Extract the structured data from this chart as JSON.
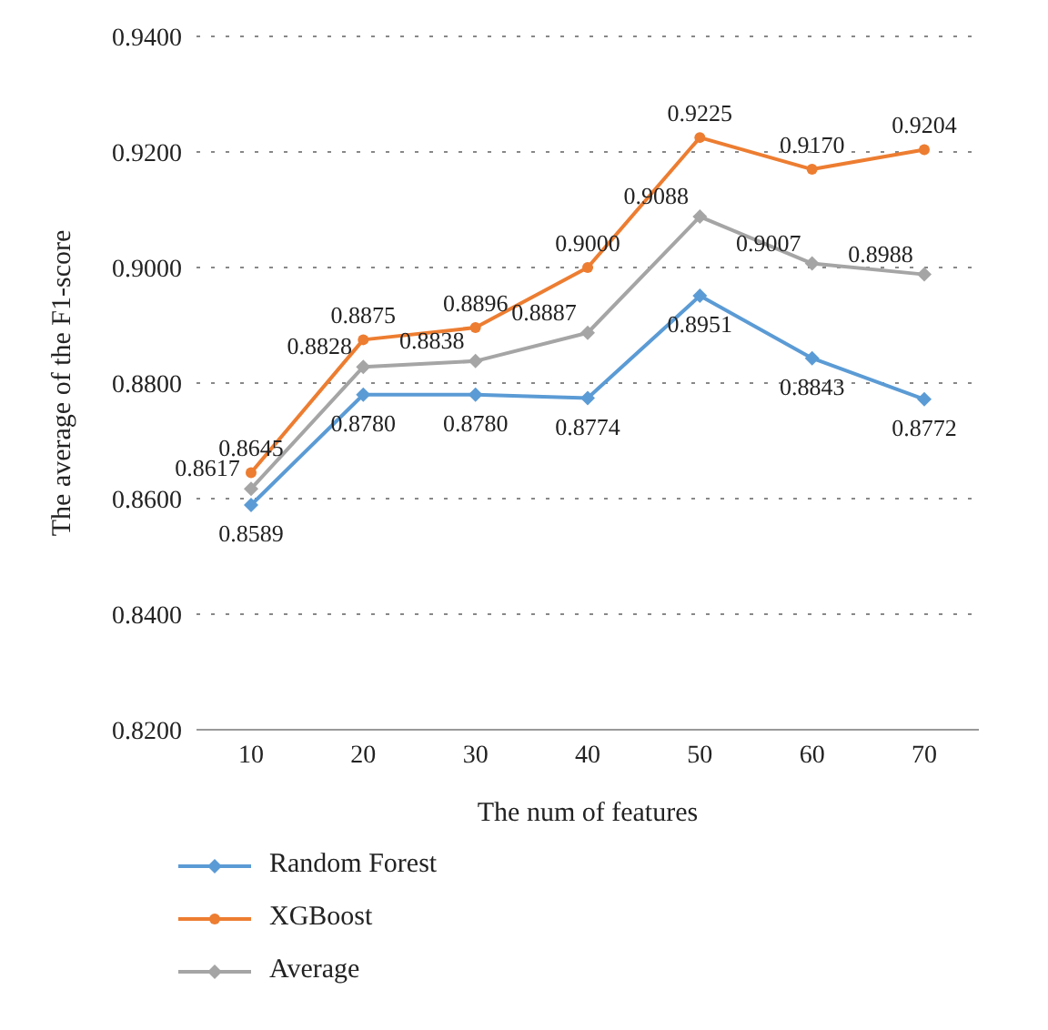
{
  "chart_data": {
    "type": "line",
    "xlabel": "The num of features",
    "ylabel": "The average of the F1-score",
    "categories": [
      "10",
      "20",
      "30",
      "40",
      "50",
      "60",
      "70"
    ],
    "series": [
      {
        "name": "Random Forest",
        "color": "#5b9bd5",
        "marker": "diamond",
        "values": [
          0.8589,
          0.878,
          0.878,
          0.8774,
          0.8951,
          0.8843,
          0.8772
        ],
        "value_labels": [
          "0.8589",
          "0.8780",
          "0.8780",
          "0.8774",
          "0.8951",
          "0.8843",
          "0.8772"
        ]
      },
      {
        "name": "XGBoost",
        "color": "#ed7d31",
        "marker": "circle",
        "values": [
          0.8645,
          0.8875,
          0.8896,
          0.9,
          0.9225,
          0.917,
          0.9204
        ],
        "value_labels": [
          "0.8645",
          "0.8875",
          "0.8896",
          "0.9000",
          "0.9225",
          "0.9170",
          "0.9204"
        ]
      },
      {
        "name": "Average",
        "color": "#a5a5a5",
        "marker": "diamond",
        "values": [
          0.8617,
          0.8828,
          0.8838,
          0.8887,
          0.9088,
          0.9007,
          0.8988
        ],
        "value_labels": [
          "0.8617",
          "0.8828",
          "0.8838",
          "0.8887",
          "0.9088",
          "0.9007",
          "0.8988"
        ]
      }
    ],
    "ylim": [
      0.82,
      0.94
    ],
    "yticks": [
      {
        "value": 0.82,
        "label": "0.8200"
      },
      {
        "value": 0.84,
        "label": "0.8400"
      },
      {
        "value": 0.86,
        "label": "0.8600"
      },
      {
        "value": 0.88,
        "label": "0.8800"
      },
      {
        "value": 0.9,
        "label": "0.9000"
      },
      {
        "value": 0.92,
        "label": "0.9200"
      },
      {
        "value": 0.94,
        "label": "0.9400"
      }
    ],
    "grid": "y",
    "legend": "bottom",
    "line_style": "solid"
  }
}
